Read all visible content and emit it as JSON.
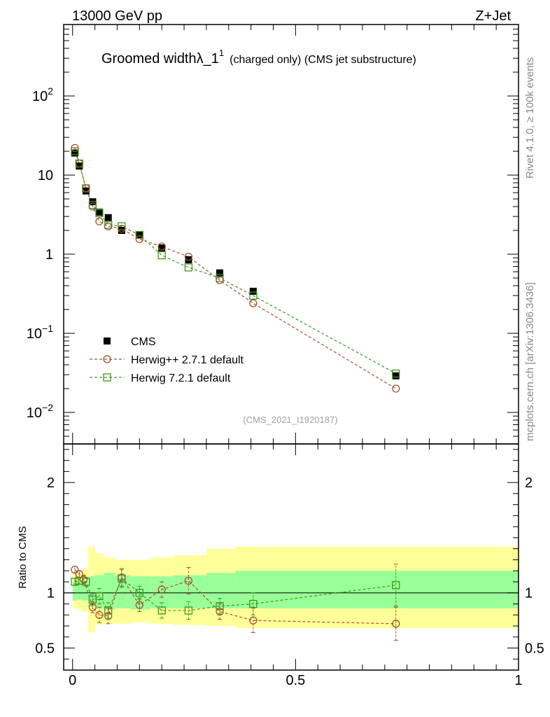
{
  "header": {
    "left": "13000 GeV pp",
    "right": "Z+Jet"
  },
  "side_labels": {
    "rivet": "Rivet 4.1.0, ≥ 100k events",
    "mcplots": "mcplots.cern.ch [arXiv:1306.3436]"
  },
  "colors": {
    "cms": "#000000",
    "herwigpp": "#a0522d",
    "herwig7": "#3a9a1a",
    "band_inner": "#99ff99",
    "band_outer": "#ffff99"
  },
  "chart_data": [
    {
      "type": "scatter",
      "panel": "main",
      "title_main": "Groomed widthλ_1",
      "title_sup": "1",
      "title_suffix": "(charged only) (CMS jet substructure)",
      "watermark": "(CMS_2021_I1920187)",
      "yscale": "log",
      "ylim": [
        0.004,
        800
      ],
      "xlim": [
        -0.02,
        1.0
      ],
      "ytick_labels": [
        {
          "value": 0.01,
          "base": "10",
          "exp": "−2"
        },
        {
          "value": 0.1,
          "base": "10",
          "exp": "−1"
        },
        {
          "value": 1,
          "base": "1",
          "exp": ""
        },
        {
          "value": 10,
          "base": "10",
          "exp": ""
        },
        {
          "value": 100,
          "base": "10",
          "exp": "2"
        }
      ],
      "legend": [
        {
          "name": "CMS",
          "marker": "square-filled"
        },
        {
          "name": "Herwig++ 2.7.1 default",
          "marker": "circle-open"
        },
        {
          "name": "Herwig 7.2.1 default",
          "marker": "square-open"
        }
      ],
      "series": [
        {
          "name": "CMS",
          "x": [
            0.005,
            0.015,
            0.03,
            0.045,
            0.06,
            0.08,
            0.11,
            0.15,
            0.2,
            0.26,
            0.33,
            0.405,
            0.725
          ],
          "y": [
            19,
            13,
            6.3,
            4.6,
            3.4,
            2.9,
            2.0,
            1.75,
            1.2,
            0.85,
            0.58,
            0.34,
            0.029
          ]
        },
        {
          "name": "Herwig++ 2.7.1 default",
          "x": [
            0.005,
            0.015,
            0.03,
            0.045,
            0.06,
            0.08,
            0.11,
            0.15,
            0.2,
            0.26,
            0.33,
            0.405,
            0.725
          ],
          "y": [
            22,
            14,
            6.8,
            4.0,
            2.6,
            2.25,
            2.1,
            1.55,
            1.25,
            0.93,
            0.47,
            0.24,
            0.02
          ]
        },
        {
          "name": "Herwig 7.2.1 default",
          "x": [
            0.005,
            0.015,
            0.03,
            0.045,
            0.06,
            0.08,
            0.11,
            0.15,
            0.2,
            0.26,
            0.33,
            0.405,
            0.725
          ],
          "y": [
            20,
            14,
            6.8,
            4.2,
            3.3,
            2.35,
            2.25,
            1.75,
            0.97,
            0.68,
            0.5,
            0.3,
            0.031
          ]
        }
      ]
    },
    {
      "type": "scatter",
      "panel": "ratio",
      "ylabel": "Ratio to CMS",
      "ylim": [
        0.3,
        2.35
      ],
      "xlim": [
        -0.02,
        1.0
      ],
      "yticks": [
        0.5,
        1,
        2
      ],
      "ytick_labels": [
        "0.5",
        "1",
        "2"
      ],
      "xticks": [
        0,
        0.5,
        1
      ],
      "xtick_labels": [
        "0",
        "0.5",
        "1"
      ],
      "bands": {
        "edges": [
          0.0,
          0.01,
          0.02,
          0.035,
          0.05,
          0.07,
          0.095,
          0.13,
          0.175,
          0.225,
          0.3,
          0.365,
          0.45,
          1.0
        ],
        "inner_lo": [
          0.93,
          0.94,
          0.93,
          0.88,
          0.86,
          0.85,
          0.86,
          0.85,
          0.86,
          0.86,
          0.86,
          0.86,
          0.86
        ],
        "inner_hi": [
          1.1,
          1.09,
          1.1,
          1.15,
          1.16,
          1.18,
          1.16,
          1.15,
          1.15,
          1.16,
          1.18,
          1.2,
          1.2
        ],
        "outer_lo": [
          0.86,
          0.85,
          0.83,
          0.64,
          0.71,
          0.72,
          0.72,
          0.73,
          0.72,
          0.71,
          0.7,
          0.68,
          0.68
        ],
        "outer_hi": [
          1.17,
          1.18,
          1.22,
          1.42,
          1.36,
          1.32,
          1.3,
          1.3,
          1.32,
          1.34,
          1.4,
          1.42,
          1.42
        ]
      },
      "series": [
        {
          "name": "Herwig++ 2.7.1 default",
          "x": [
            0.005,
            0.015,
            0.025,
            0.045,
            0.06,
            0.08,
            0.11,
            0.15,
            0.2,
            0.26,
            0.33,
            0.405,
            0.725
          ],
          "y": [
            1.21,
            1.17,
            1.12,
            0.87,
            0.8,
            0.79,
            1.14,
            0.89,
            1.03,
            1.11,
            0.83,
            0.75,
            0.72
          ],
          "err": [
            0.03,
            0.03,
            0.04,
            0.05,
            0.07,
            0.07,
            0.08,
            0.06,
            0.07,
            0.12,
            0.07,
            0.11,
            0.15
          ]
        },
        {
          "name": "Herwig 7.2.1 default",
          "x": [
            0.005,
            0.015,
            0.03,
            0.045,
            0.06,
            0.08,
            0.11,
            0.15,
            0.2,
            0.26,
            0.33,
            0.405,
            0.725
          ],
          "y": [
            1.1,
            1.11,
            1.1,
            0.94,
            0.97,
            0.84,
            1.13,
            1.0,
            0.84,
            0.84,
            0.88,
            0.9,
            1.07
          ],
          "err": [
            0.03,
            0.03,
            0.04,
            0.05,
            0.07,
            0.07,
            0.08,
            0.06,
            0.07,
            0.08,
            0.07,
            0.1,
            0.19
          ]
        }
      ]
    }
  ]
}
